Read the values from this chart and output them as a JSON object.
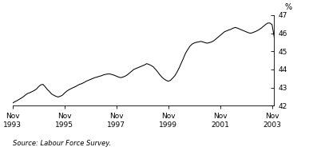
{
  "ylabel": "%",
  "source_text": "Source: Labour Force Survey.",
  "ylim": [
    42,
    47
  ],
  "yticks": [
    42,
    43,
    44,
    45,
    46,
    47
  ],
  "x_tick_labels": [
    "Nov\n1993",
    "Nov\n1995",
    "Nov\n1997",
    "Nov\n1999",
    "Nov\n2001",
    "Nov\n2003"
  ],
  "x_tick_positions": [
    0,
    24,
    48,
    72,
    96,
    120
  ],
  "line_color": "#000000",
  "background_color": "#ffffff",
  "data_y": [
    42.15,
    42.22,
    42.28,
    42.35,
    42.42,
    42.5,
    42.6,
    42.68,
    42.72,
    42.78,
    42.84,
    42.92,
    43.05,
    43.15,
    43.18,
    43.05,
    42.9,
    42.78,
    42.65,
    42.58,
    42.52,
    42.48,
    42.52,
    42.58,
    42.7,
    42.8,
    42.88,
    42.94,
    43.0,
    43.05,
    43.12,
    43.18,
    43.22,
    43.28,
    43.35,
    43.4,
    43.45,
    43.5,
    43.55,
    43.58,
    43.62,
    43.65,
    43.7,
    43.73,
    43.75,
    43.75,
    43.72,
    43.68,
    43.63,
    43.58,
    43.55,
    43.58,
    43.63,
    43.7,
    43.8,
    43.9,
    44.0,
    44.05,
    44.1,
    44.15,
    44.2,
    44.25,
    44.32,
    44.28,
    44.22,
    44.15,
    44.02,
    43.88,
    43.72,
    43.58,
    43.48,
    43.4,
    43.35,
    43.4,
    43.52,
    43.65,
    43.85,
    44.08,
    44.35,
    44.62,
    44.9,
    45.1,
    45.28,
    45.4,
    45.46,
    45.5,
    45.52,
    45.55,
    45.52,
    45.48,
    45.45,
    45.48,
    45.52,
    45.58,
    45.68,
    45.78,
    45.88,
    45.98,
    46.08,
    46.13,
    46.18,
    46.22,
    46.28,
    46.32,
    46.28,
    46.23,
    46.18,
    46.13,
    46.08,
    46.03,
    46.0,
    46.03,
    46.08,
    46.13,
    46.2,
    46.28,
    46.38,
    46.48,
    46.56,
    46.56,
    46.48,
    45.78
  ]
}
